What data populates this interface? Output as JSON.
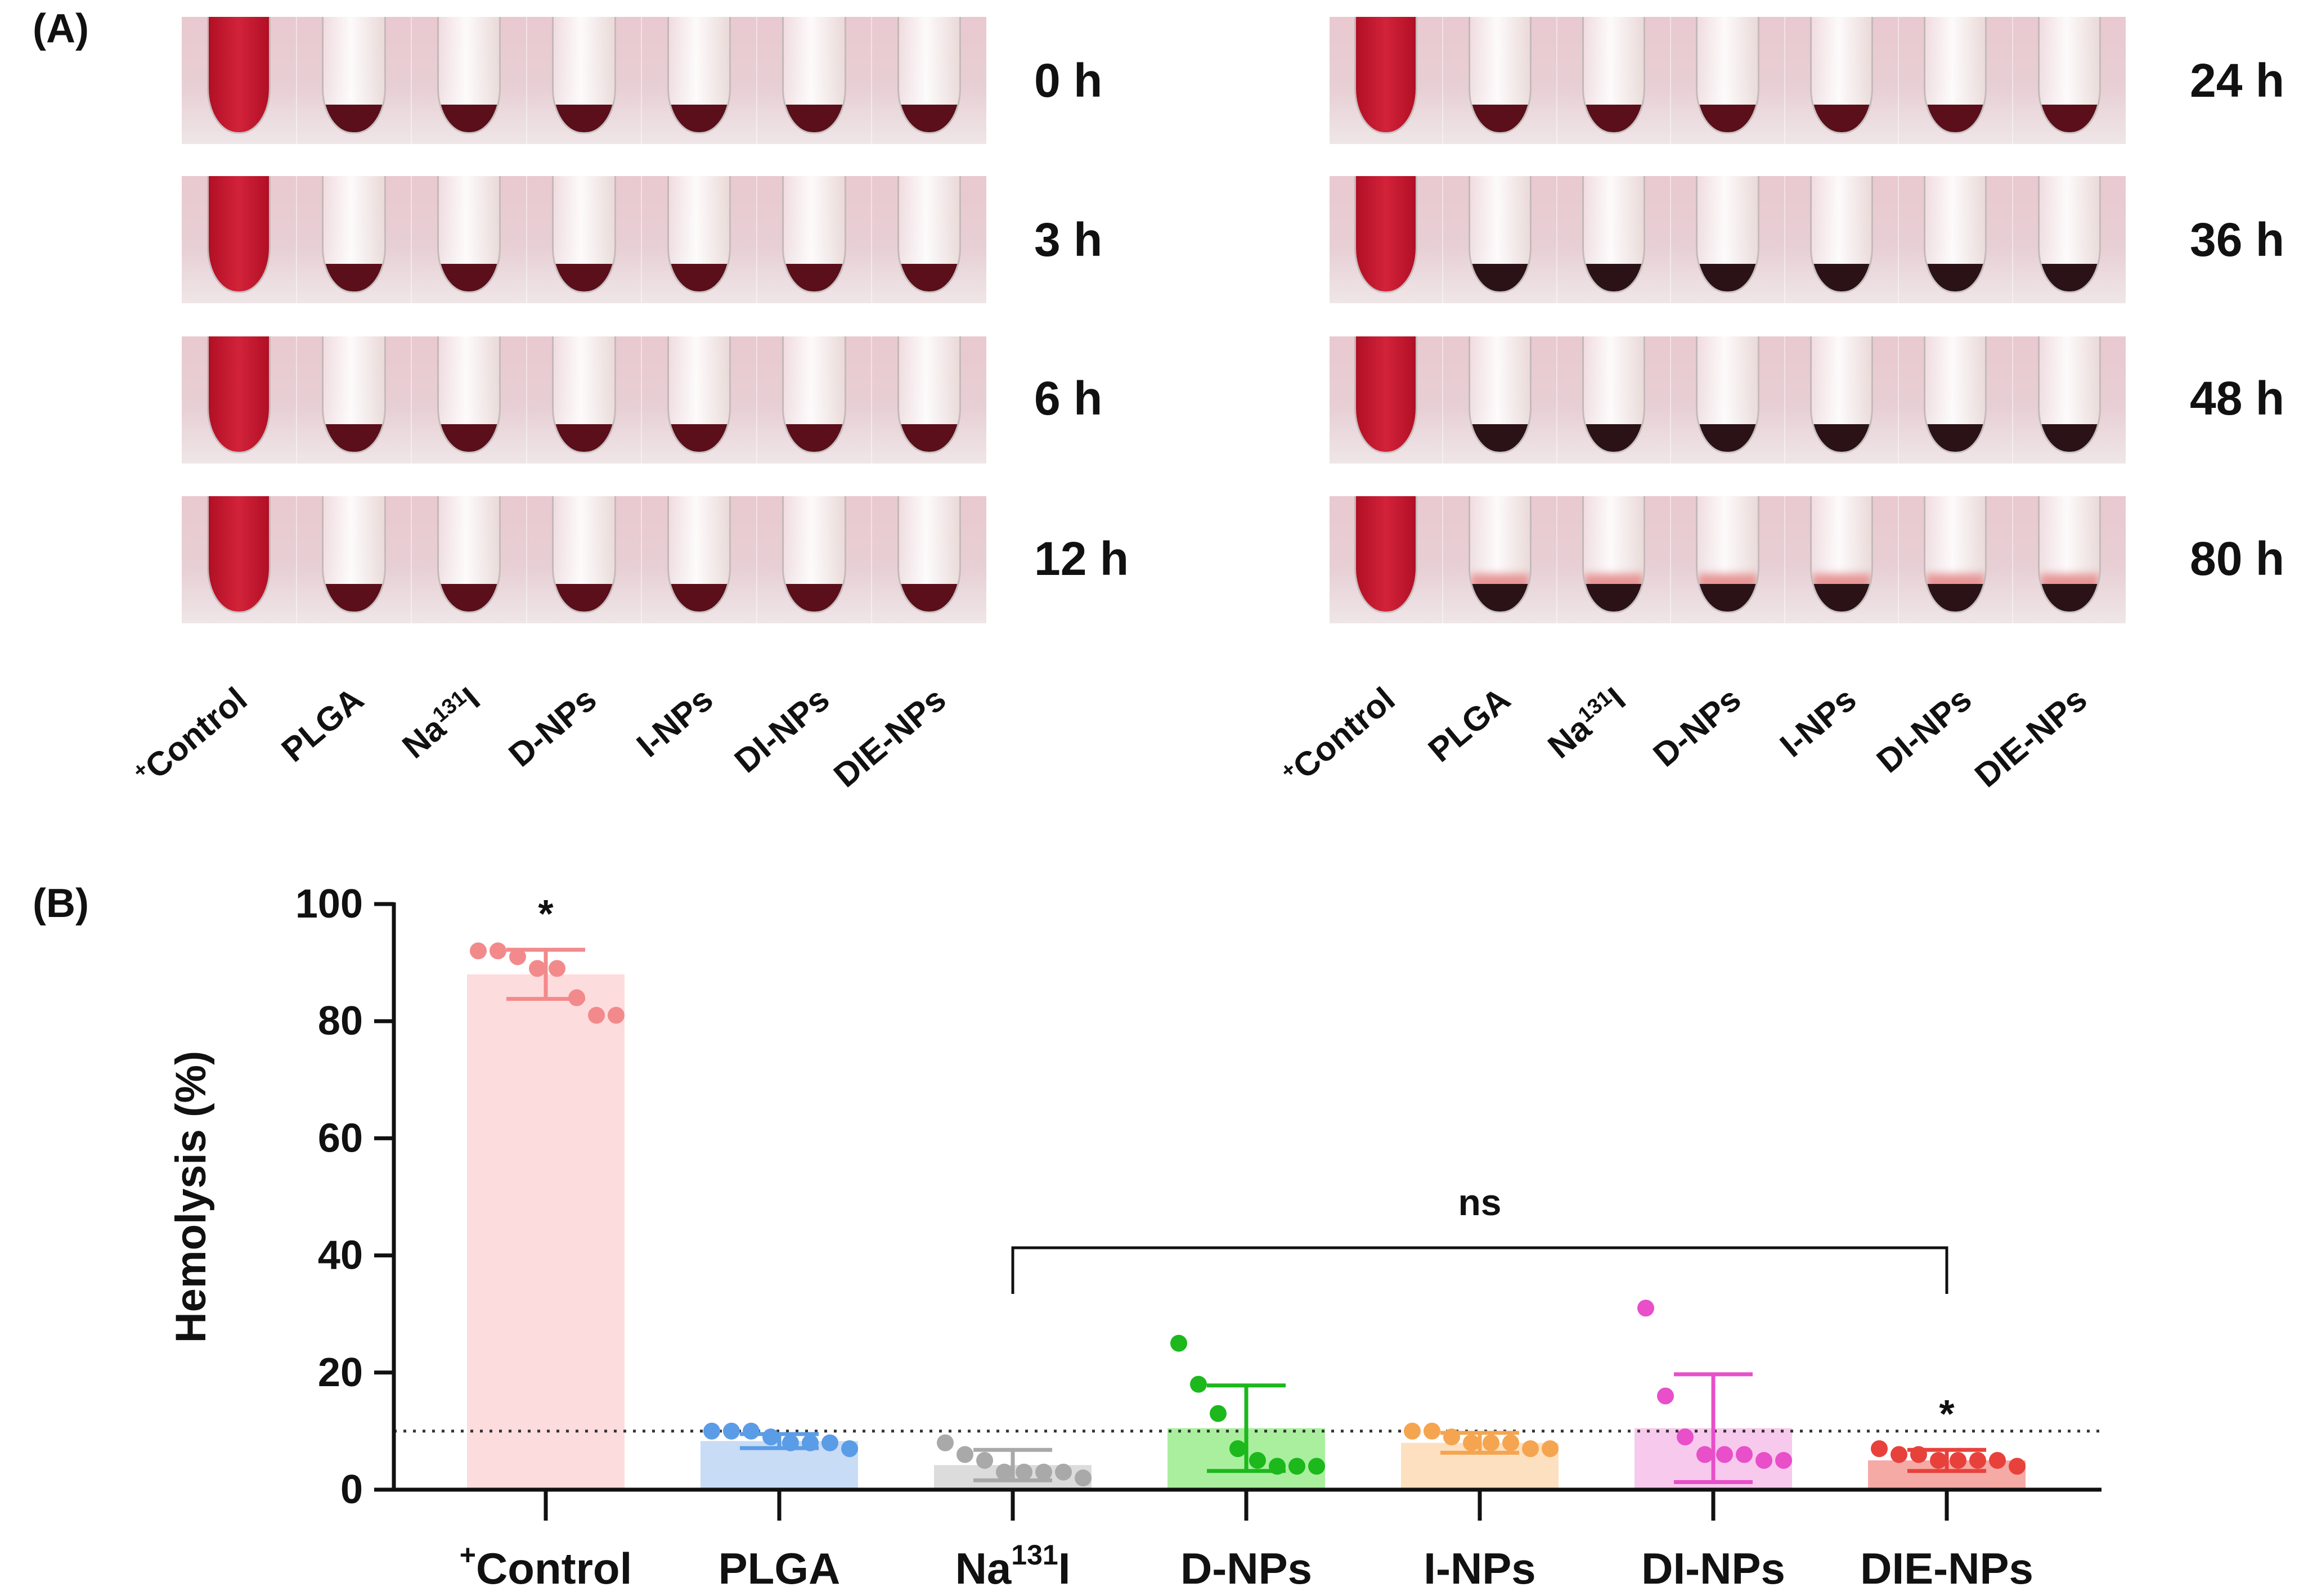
{
  "panel_a": {
    "label": "(A)",
    "left_times": [
      "0 h",
      "3 h",
      "6 h",
      "12 h"
    ],
    "right_times": [
      "24 h",
      "36 h",
      "48 h",
      "80 h"
    ],
    "tube_labels": [
      {
        "pre": "+",
        "main": "Control",
        "sup": ""
      },
      {
        "pre": "",
        "main": "PLGA",
        "sup": ""
      },
      {
        "pre": "",
        "main": "Na",
        "sup": "131",
        "post": "I"
      },
      {
        "pre": "",
        "main": "D-NPs",
        "sup": ""
      },
      {
        "pre": "",
        "main": "I-NPs",
        "sup": ""
      },
      {
        "pre": "",
        "main": "DI-NPs",
        "sup": ""
      },
      {
        "pre": "",
        "main": "DIE-NPs",
        "sup": ""
      }
    ],
    "colors": {
      "blood": "#b10f25",
      "pellet": "#5a0f1a",
      "pellet_late": "#2a1216",
      "pink_band": "#e79696"
    }
  },
  "panel_b": {
    "label": "(B)"
  },
  "chart_data": {
    "type": "bar",
    "title": "",
    "xlabel": "",
    "ylabel": "Hemolysis (%)",
    "ylim": [
      0,
      100
    ],
    "yticks": [
      0,
      20,
      40,
      60,
      80,
      100
    ],
    "threshold": 10,
    "categories": [
      "+Control",
      "PLGA",
      "Na131I",
      "D-NPs",
      "I-NPs",
      "DI-NPs",
      "DIE-NPs"
    ],
    "category_display": [
      {
        "pre": "+",
        "main": "Control",
        "sup": "",
        "post": ""
      },
      {
        "pre": "",
        "main": "PLGA",
        "sup": "",
        "post": ""
      },
      {
        "pre": "",
        "main": "Na",
        "sup": "131",
        "post": "I"
      },
      {
        "pre": "",
        "main": "D-NPs",
        "sup": "",
        "post": ""
      },
      {
        "pre": "",
        "main": "I-NPs",
        "sup": "",
        "post": ""
      },
      {
        "pre": "",
        "main": "DI-NPs",
        "sup": "",
        "post": ""
      },
      {
        "pre": "",
        "main": "DIE-NPs",
        "sup": "",
        "post": ""
      }
    ],
    "means": [
      88,
      8.3,
      4.2,
      10.5,
      8.0,
      10.5,
      5.0
    ],
    "errors": [
      4.2,
      1.2,
      2.6,
      7.3,
      1.7,
      9.2,
      1.8
    ],
    "points": [
      [
        92,
        92,
        91,
        89,
        89,
        84,
        81,
        81
      ],
      [
        10,
        10,
        10,
        9,
        8,
        8,
        8,
        7
      ],
      [
        8,
        6,
        5,
        3,
        3,
        3,
        3,
        2
      ],
      [
        25,
        18,
        13,
        7,
        5,
        4,
        4,
        4
      ],
      [
        10,
        10,
        9,
        8,
        8,
        8,
        7,
        7
      ],
      [
        31,
        16,
        9,
        6,
        6,
        6,
        5,
        5
      ],
      [
        7,
        6,
        6,
        5,
        5,
        5,
        5,
        4
      ]
    ],
    "bar_colors": [
      "#fddcdd",
      "#c8dcf5",
      "#dcdcdc",
      "#a9ef9e",
      "#fde0c0",
      "#f7c9ec",
      "#f5aaa5"
    ],
    "point_colors": [
      "#f28a8c",
      "#5b9ce6",
      "#a9a9a9",
      "#1cb81c",
      "#f5a550",
      "#e84fc9",
      "#e8413c"
    ],
    "significance": [
      {
        "category": "+Control",
        "text": "*"
      },
      {
        "category": "DIE-NPs",
        "text": "*"
      }
    ],
    "bracket": {
      "from": "Na131I",
      "to": "DIE-NPs",
      "text": "ns"
    }
  }
}
